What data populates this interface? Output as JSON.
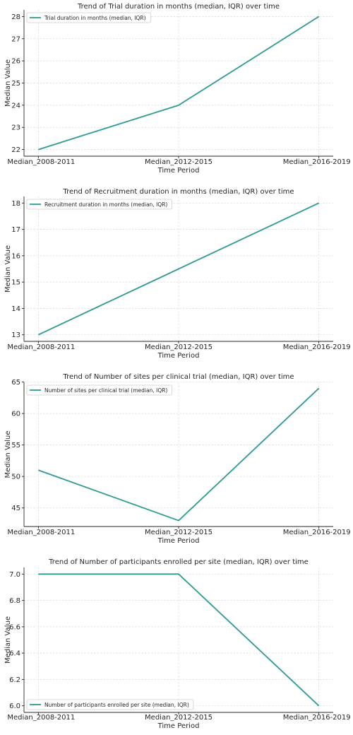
{
  "chart_data": [
    {
      "type": "line",
      "title": "Trend of Trial duration in months (median, IQR) over time",
      "xlabel": "Time Period",
      "ylabel": "Median Value",
      "categories": [
        "Median_2008-2011",
        "Median_2012-2015",
        "Median_2016-2019"
      ],
      "series": [
        {
          "name": "Trial duration in months (median, IQR)",
          "values": [
            22,
            24,
            28
          ]
        }
      ],
      "ylim": [
        21.7,
        28.3
      ],
      "yticks": [
        22,
        23,
        24,
        25,
        26,
        27,
        28
      ],
      "yticklabels": [
        "22",
        "23",
        "24",
        "25",
        "26",
        "27",
        "28"
      ],
      "legend": "top-left",
      "grid": true
    },
    {
      "type": "line",
      "title": "Trend of Recruitment duration in months (median, IQR) over time",
      "xlabel": "Time Period",
      "ylabel": "Median Value",
      "categories": [
        "Median_2008-2011",
        "Median_2012-2015",
        "Median_2016-2019"
      ],
      "series": [
        {
          "name": "Recruitment duration in months (median, IQR)",
          "values": [
            13,
            15.5,
            18
          ]
        }
      ],
      "ylim": [
        12.75,
        18.25
      ],
      "yticks": [
        13,
        14,
        15,
        16,
        17,
        18
      ],
      "yticklabels": [
        "13",
        "14",
        "15",
        "16",
        "17",
        "18"
      ],
      "legend": "top-left",
      "grid": true
    },
    {
      "type": "line",
      "title": "Trend of Number of sites per clinical trial (median, IQR) over time",
      "xlabel": "Time Period",
      "ylabel": "Median Value",
      "categories": [
        "Median_2008-2011",
        "Median_2012-2015",
        "Median_2016-2019"
      ],
      "series": [
        {
          "name": "Number of sites per clinical trial (median, IQR)",
          "values": [
            51,
            43,
            64
          ]
        }
      ],
      "ylim": [
        42.05,
        64.95
      ],
      "yticks": [
        45,
        50,
        55,
        60,
        65
      ],
      "yticklabels": [
        "45",
        "50",
        "55",
        "60",
        "65"
      ],
      "legend": "top-left",
      "grid": true
    },
    {
      "type": "line",
      "title": "Trend of Number of participants enrolled per site (median, IQR) over time",
      "xlabel": "Time Period",
      "ylabel": "Median Value",
      "categories": [
        "Median_2008-2011",
        "Median_2012-2015",
        "Median_2016-2019"
      ],
      "series": [
        {
          "name": "Number of participants enrolled per site (median, IQR)",
          "values": [
            7.0,
            7.0,
            6.0
          ]
        }
      ],
      "ylim": [
        5.95,
        7.05
      ],
      "yticks": [
        6.0,
        6.2,
        6.4,
        6.6,
        6.8,
        7.0
      ],
      "yticklabels": [
        "6.0",
        "6.2",
        "6.4",
        "6.6",
        "6.8",
        "7.0"
      ],
      "legend": "bottom-left",
      "grid": true
    }
  ],
  "colors": {
    "line": "#2e9a94",
    "grid": "#d9d9d9",
    "axis": "#262626"
  }
}
